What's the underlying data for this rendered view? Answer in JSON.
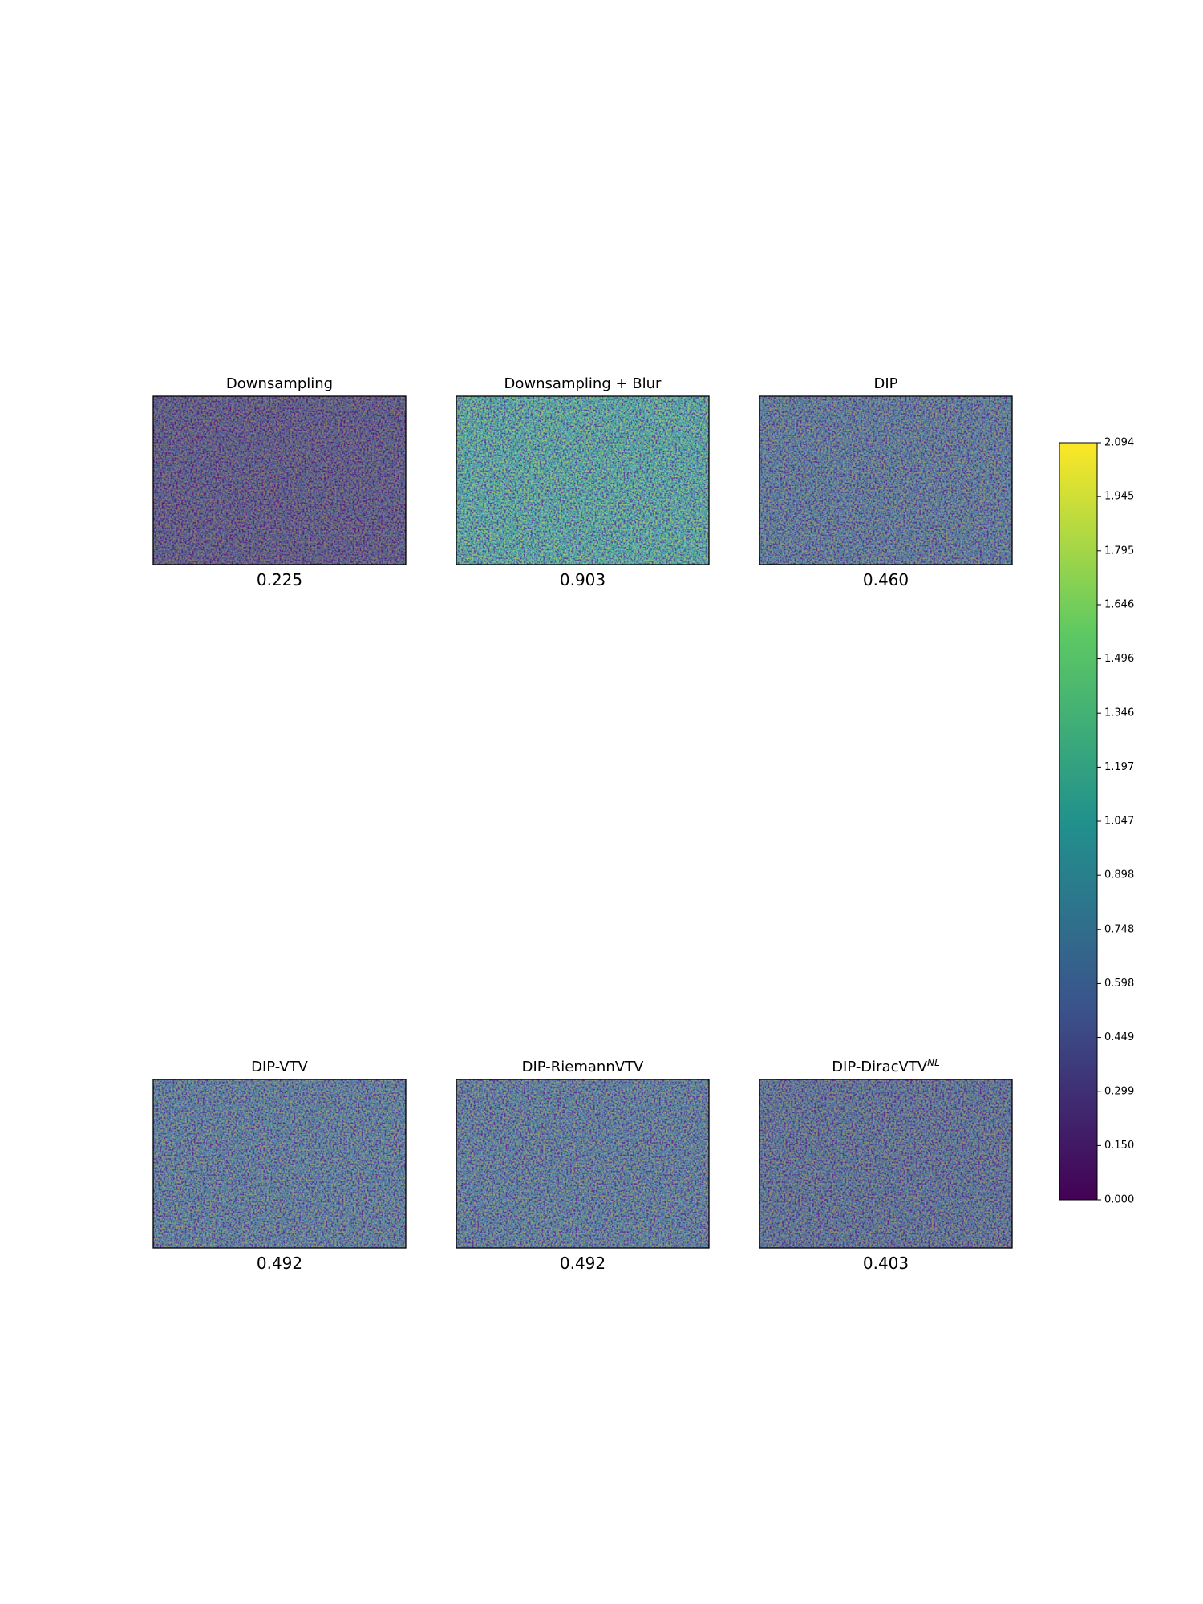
{
  "chart_data": {
    "type": "heatmap-grid",
    "panels": [
      {
        "title": "Downsampling",
        "value": 0.225,
        "value_label": "0.225"
      },
      {
        "title": "Downsampling + Blur",
        "value": 0.903,
        "value_label": "0.903"
      },
      {
        "title": "DIP",
        "value": 0.46,
        "value_label": "0.460"
      },
      {
        "title": "DIP-VTV",
        "value": 0.492,
        "value_label": "0.492"
      },
      {
        "title": "DIP-RiemannVTV",
        "value": 0.492,
        "value_label": "0.492"
      },
      {
        "title": "DIP-DiracVTV",
        "title_sup": "NL",
        "value": 0.403,
        "value_label": "0.403"
      }
    ],
    "colorbar": {
      "ylim": [
        0,
        2.094
      ],
      "yticks": [
        {
          "value": 0,
          "label": "0.000"
        },
        {
          "value": 0.15,
          "label": "0.150"
        },
        {
          "value": 0.299,
          "label": "0.299"
        },
        {
          "value": 0.449,
          "label": "0.449"
        },
        {
          "value": 0.598,
          "label": "0.598"
        },
        {
          "value": 0.748,
          "label": "0.748"
        },
        {
          "value": 0.898,
          "label": "0.898"
        },
        {
          "value": 1.047,
          "label": "1.047"
        },
        {
          "value": 1.197,
          "label": "1.197"
        },
        {
          "value": 1.346,
          "label": "1.346"
        },
        {
          "value": 1.496,
          "label": "1.496"
        },
        {
          "value": 1.646,
          "label": "1.646"
        },
        {
          "value": 1.795,
          "label": "1.795"
        },
        {
          "value": 1.945,
          "label": "1.945"
        },
        {
          "value": 2.094,
          "label": "2.094"
        }
      ]
    }
  }
}
